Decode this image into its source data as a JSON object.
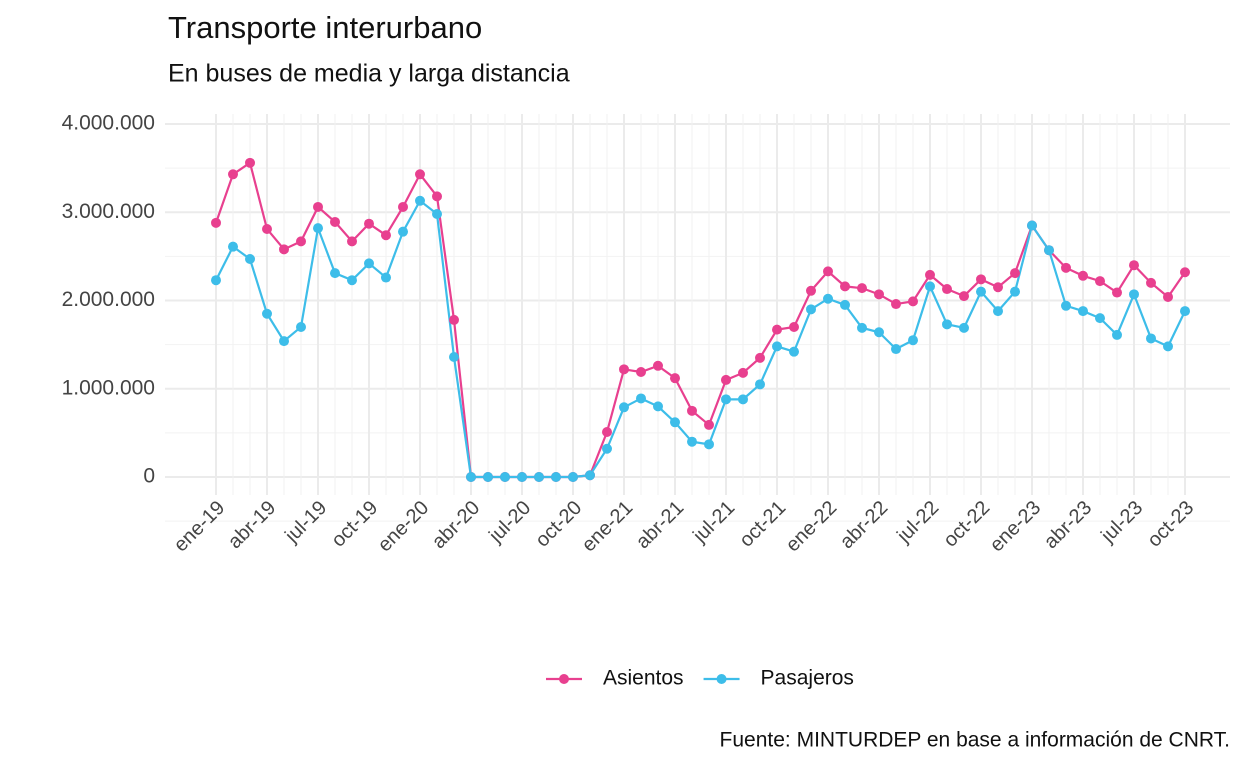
{
  "chart_data": {
    "type": "line",
    "title": "Transporte interurbano",
    "subtitle": "En buses de media y larga distancia",
    "caption": "Fuente: MINTURDEP en base a información de CNRT.",
    "categories": [
      "ene-19",
      null,
      null,
      "abr-19",
      null,
      null,
      "jul-19",
      null,
      null,
      "oct-19",
      null,
      null,
      "ene-20",
      null,
      null,
      "abr-20",
      null,
      null,
      "jul-20",
      null,
      null,
      "oct-20",
      null,
      null,
      "ene-21",
      null,
      null,
      "abr-21",
      null,
      null,
      "jul-21",
      null,
      null,
      "oct-21",
      null,
      null,
      "ene-22",
      null,
      null,
      "abr-22",
      null,
      null,
      "jul-22",
      null,
      null,
      "oct-22",
      null,
      null,
      "ene-23",
      null,
      null,
      "abr-23",
      null,
      null,
      "jul-23",
      null,
      null,
      "oct-23"
    ],
    "series": [
      {
        "name": "Asientos",
        "color": "#e8408f",
        "values": [
          2880000,
          3430000,
          3560000,
          2810000,
          2580000,
          2670000,
          3060000,
          2890000,
          2670000,
          2870000,
          2740000,
          3060000,
          3430000,
          3180000,
          1780000,
          0,
          0,
          0,
          0,
          0,
          0,
          0,
          20000,
          510000,
          1220000,
          1190000,
          1260000,
          1120000,
          750000,
          590000,
          1100000,
          1180000,
          1350000,
          1670000,
          1700000,
          2110000,
          2330000,
          2160000,
          2140000,
          2070000,
          1960000,
          1990000,
          2290000,
          2130000,
          2050000,
          2240000,
          2150000,
          2310000,
          2850000,
          2570000,
          2370000,
          2280000,
          2220000,
          2090000,
          2400000,
          2200000,
          2040000,
          2320000
        ]
      },
      {
        "name": "Pasajeros",
        "color": "#3dbde9",
        "values": [
          2230000,
          2610000,
          2470000,
          1850000,
          1540000,
          1700000,
          2820000,
          2310000,
          2230000,
          2420000,
          2260000,
          2780000,
          3130000,
          2980000,
          1360000,
          0,
          0,
          0,
          0,
          0,
          0,
          0,
          20000,
          320000,
          790000,
          890000,
          800000,
          620000,
          400000,
          370000,
          880000,
          880000,
          1050000,
          1480000,
          1420000,
          1900000,
          2020000,
          1950000,
          1690000,
          1640000,
          1450000,
          1550000,
          2160000,
          1730000,
          1690000,
          2100000,
          1880000,
          2100000,
          2850000,
          2570000,
          1940000,
          1880000,
          1800000,
          1610000,
          2070000,
          1570000,
          1480000,
          1880000
        ]
      }
    ],
    "ylim": [
      0,
      4000000
    ],
    "yticks": [
      0,
      {
        "value": 1000000,
        "label": "1.000.000"
      },
      {
        "value": 2000000,
        "label": "2.000.000"
      },
      {
        "value": 3000000,
        "label": "3.000.000"
      },
      {
        "value": 4000000,
        "label": "4.000.000"
      }
    ],
    "grid": true,
    "legend": "bottom"
  }
}
